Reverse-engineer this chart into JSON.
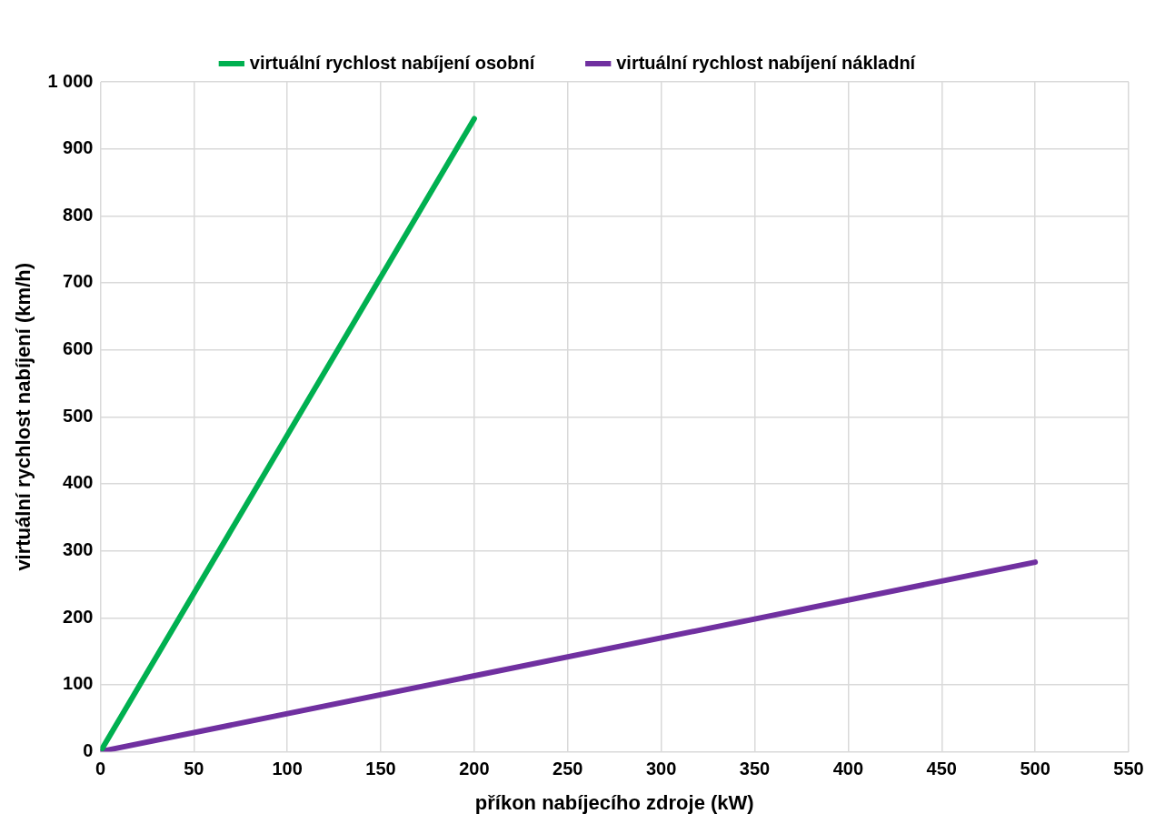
{
  "chart_data": {
    "type": "line",
    "xlabel": "příkon nabíjecího zdroje (kW)",
    "ylabel": "virtuální rychlost nabíjení (km/h)",
    "xlim": [
      0,
      550
    ],
    "xticks": [
      0,
      50,
      100,
      150,
      200,
      250,
      300,
      350,
      400,
      450,
      500,
      550
    ],
    "ylim": [
      0,
      1000
    ],
    "yticks": [
      0,
      100,
      200,
      300,
      400,
      500,
      600,
      700,
      800,
      900,
      {
        "value": 1000,
        "label": "1 000"
      }
    ],
    "grid": true,
    "legend": "top",
    "marker": "none",
    "line_style": "solid",
    "series": [
      {
        "name": "virtuální rychlost nabíjení osobní",
        "color": "#00b050",
        "x": [
          1,
          200
        ],
        "values": [
          5,
          945
        ]
      },
      {
        "name": "virtuální rychlost nabíjení nákladní",
        "color": "#7030a0",
        "x": [
          1,
          500
        ],
        "values": [
          1,
          283
        ]
      }
    ]
  }
}
